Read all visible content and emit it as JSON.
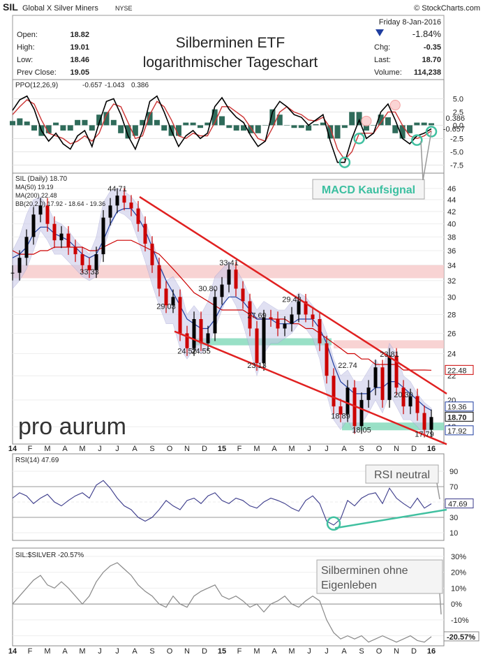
{
  "header": {
    "symbol": "SIL",
    "name": "Global X Silver Miners",
    "exchange": "NYSE",
    "source": "© StockCharts.com",
    "date": "Friday  8-Jan-2016",
    "change_pct": "-1.84%",
    "open_label": "Open:",
    "open": "18.82",
    "high_label": "High:",
    "high": "19.01",
    "low_label": "Low:",
    "low": "18.46",
    "prev_label": "Prev Close:",
    "prev": "19.05",
    "chg_label": "Chg:",
    "chg": "-0.35",
    "last_label": "Last:",
    "last": "18.70",
    "vol_label": "Volume:",
    "volume": "114,238",
    "title_line1": "Silberminen ETF",
    "title_line2": "logarithmischer Tageschart"
  },
  "colors": {
    "price_up": "#000000",
    "price_down": "#cc0000",
    "ma50": "#1f3ea0",
    "ma200": "#cc0000",
    "bollinger_fill": "#c8c8e8",
    "resistance_band": "#f6c8c8",
    "support_band": "#7fd8b8",
    "trendline": "#e02020",
    "ppo_line": "#000000",
    "ppo_signal": "#cc3333",
    "ppo_hist": "#2f6b5a",
    "rsi_line": "#3a3a8a",
    "rsi_fill": "#3a7a6a",
    "ratio_line": "#888888",
    "annot_green": "#40c0a0"
  },
  "chart_data": [
    {
      "type": "line",
      "name": "ppo-panel",
      "legend": {
        "label": "PPO(12,26,9)",
        "ppo": "-0.657",
        "signal": "-1.043",
        "hist": "0.386"
      },
      "yticks": [
        "5.0",
        "2.5",
        "0.0",
        "-2.5",
        "-5.0",
        "-7.5"
      ],
      "ytick_values": [
        5,
        2.5,
        0,
        -2.5,
        -5,
        -7.5
      ],
      "ylim": [
        -8.5,
        6.5
      ],
      "last_ppo_label": "-0.657",
      "last_hist_label": "0.386",
      "series": [
        {
          "name": "PPO",
          "values": [
            2.8,
            4.8,
            5.5,
            3.0,
            -1.0,
            -3.0,
            -1.5,
            -3.5,
            -4.5,
            -2.0,
            -1.0,
            -4.0,
            0.5,
            4.5,
            5.0,
            2.0,
            -2.0,
            -4.5,
            -1.0,
            4.5,
            5.5,
            2.5,
            -1.0,
            -4.0,
            -2.0,
            -1.0,
            -2.5,
            -1.5,
            3.5,
            5.2,
            3.0,
            1.5,
            0.5,
            -2.0,
            -4.0,
            -3.0,
            2.5,
            4.5,
            3.5,
            2.0,
            1.5,
            0.0,
            1.0,
            2.0,
            -3.0,
            -7.0,
            -7.0,
            -2.5,
            1.0,
            -2.5,
            -1.5,
            2.5,
            4.0,
            1.0,
            -2.5,
            -3.5,
            -2.0,
            -1.5,
            -0.657
          ]
        },
        {
          "name": "Signal",
          "values": [
            2.0,
            3.5,
            4.8,
            4.0,
            1.0,
            -1.5,
            -2.0,
            -2.5,
            -3.5,
            -3.0,
            -2.0,
            -3.0,
            -1.5,
            2.0,
            4.0,
            3.5,
            0.5,
            -2.5,
            -2.0,
            2.0,
            4.5,
            3.5,
            1.0,
            -2.0,
            -2.5,
            -1.5,
            -2.0,
            -2.0,
            0.5,
            3.5,
            3.5,
            2.5,
            1.5,
            -0.5,
            -2.5,
            -3.0,
            -0.5,
            2.5,
            3.5,
            2.5,
            2.0,
            1.0,
            0.8,
            1.5,
            -0.5,
            -4.5,
            -6.5,
            -5.0,
            -1.5,
            -1.5,
            -1.5,
            0.5,
            2.5,
            2.5,
            0.0,
            -2.0,
            -2.5,
            -2.0,
            -1.043
          ]
        }
      ]
    },
    {
      "type": "line",
      "name": "price-panel",
      "scale": "log",
      "legend": {
        "label": "SIL (Daily) 18.70",
        "ma50": "MA(50) 19.19",
        "ma200": "MA(200) 22.48",
        "bb": "BB(20,2.0) 17.92 - 18.64 - 19.36"
      },
      "yticks": [
        "46",
        "44",
        "42",
        "40",
        "38",
        "36",
        "34",
        "32",
        "30",
        "28",
        "26",
        "24",
        "22",
        "20",
        "18"
      ],
      "ytick_values": [
        46,
        44,
        42,
        40,
        38,
        36,
        34,
        32,
        30,
        28,
        26,
        24,
        22,
        20,
        18
      ],
      "ylim": [
        17.0,
        47.0
      ],
      "x_labels": [
        "14",
        "F",
        "M",
        "A",
        "M",
        "J",
        "J",
        "A",
        "S",
        "O",
        "N",
        "D",
        "15",
        "F",
        "M",
        "A",
        "M",
        "J",
        "J",
        "A",
        "S",
        "O",
        "N",
        "D",
        "16"
      ],
      "close": [
        33.0,
        35.0,
        38.0,
        41.5,
        43.0,
        40.0,
        37.5,
        38.5,
        36.5,
        35.5,
        34.0,
        33.33,
        35.5,
        41.0,
        43.0,
        44.71,
        43.5,
        42.5,
        40.0,
        37.0,
        34.0,
        31.0,
        29.03,
        30.0,
        26.0,
        24.52,
        27.5,
        25.0,
        26.0,
        30.0,
        31.5,
        33.41,
        31.0,
        29.5,
        26.5,
        23.13,
        27.69,
        27.5,
        26.5,
        27.0,
        28.0,
        29.48,
        28.0,
        27.5,
        25.0,
        22.0,
        19.5,
        18.89,
        21.0,
        18.05,
        20.0,
        21.0,
        22.74,
        20.0,
        23.81,
        21.0,
        19.5,
        20.3,
        19.0,
        17.79,
        18.7
      ],
      "ma50": [
        35.0,
        35.5,
        36.5,
        38.5,
        39.5,
        39.5,
        38.5,
        38.0,
        37.5,
        36.5,
        35.5,
        35.0,
        35.5,
        37.5,
        40.0,
        42.0,
        42.5,
        42.5,
        41.0,
        39.0,
        36.5,
        34.0,
        32.0,
        30.5,
        29.0,
        27.5,
        27.0,
        26.5,
        26.5,
        27.5,
        29.0,
        30.0,
        30.0,
        29.5,
        28.5,
        27.5,
        27.5,
        27.5,
        27.0,
        27.0,
        27.0,
        27.5,
        27.5,
        27.5,
        26.5,
        25.0,
        23.0,
        21.5,
        21.0,
        20.5,
        20.5,
        20.5,
        21.0,
        21.0,
        21.5,
        21.5,
        21.0,
        20.5,
        20.0,
        19.5,
        19.19
      ],
      "ma200": [
        36.0,
        35.5,
        35.5,
        35.5,
        36.0,
        36.0,
        36.5,
        36.5,
        36.5,
        36.5,
        36.5,
        36.0,
        36.0,
        36.5,
        37.0,
        37.5,
        37.5,
        37.5,
        37.0,
        36.5,
        36.0,
        35.5,
        34.5,
        33.5,
        32.5,
        31.5,
        30.5,
        30.0,
        29.5,
        29.0,
        28.5,
        28.5,
        28.5,
        28.5,
        28.0,
        27.5,
        27.5,
        27.5,
        27.5,
        27.5,
        27.0,
        27.0,
        26.5,
        26.5,
        26.0,
        25.5,
        25.0,
        24.5,
        24.0,
        24.0,
        23.5,
        23.5,
        23.0,
        23.0,
        23.0,
        23.0,
        22.5,
        22.5,
        22.5,
        22.5,
        22.48
      ],
      "bb_upper": [
        36.0,
        38.0,
        41.5,
        44.0,
        44.5,
        43.0,
        40.5,
        40.0,
        39.0,
        37.5,
        36.5,
        35.5,
        38.0,
        43.5,
        45.5,
        46.0,
        45.5,
        44.5,
        43.0,
        40.5,
        37.5,
        34.5,
        32.0,
        32.5,
        31.0,
        28.0,
        29.0,
        28.0,
        29.5,
        32.5,
        33.5,
        34.5,
        33.5,
        32.0,
        30.0,
        28.5,
        29.5,
        29.0,
        28.5,
        28.5,
        29.5,
        30.5,
        30.0,
        29.0,
        28.0,
        26.0,
        23.5,
        22.0,
        22.5,
        21.5,
        21.5,
        22.5,
        23.5,
        22.5,
        25.0,
        24.0,
        22.0,
        21.5,
        20.5,
        19.8,
        19.36
      ],
      "bb_lower": [
        31.0,
        32.0,
        33.5,
        36.0,
        39.0,
        37.5,
        35.5,
        35.5,
        34.5,
        33.5,
        32.5,
        32.0,
        32.5,
        36.0,
        39.5,
        42.0,
        41.5,
        40.5,
        37.5,
        34.5,
        31.5,
        29.0,
        27.0,
        27.0,
        24.5,
        23.5,
        24.5,
        24.0,
        24.5,
        26.5,
        28.5,
        30.5,
        29.0,
        27.0,
        24.5,
        22.0,
        24.0,
        25.0,
        25.0,
        25.5,
        26.0,
        27.0,
        26.5,
        25.5,
        23.5,
        20.5,
        18.5,
        17.8,
        18.5,
        17.5,
        18.2,
        19.0,
        20.0,
        19.0,
        20.5,
        19.5,
        18.5,
        18.5,
        18.0,
        17.4,
        17.92
      ],
      "annotations": [
        "44.71",
        "33.33",
        "33.41",
        "30.80",
        "29.03",
        "27.69",
        "29.48",
        "24.52",
        "24.55",
        "23.13",
        "22.74",
        "23.81",
        "18.89",
        "18.05",
        "20.30",
        "17.79"
      ],
      "right_labels": {
        "ma200": "22.48",
        "bb_upper": "19.36",
        "last": "18.70",
        "bb_lower": "17.92"
      },
      "resistance_band": [
        32.3,
        34.0
      ],
      "support_bands": [
        [
          24.8,
          25.5
        ],
        [
          17.75,
          18.3
        ]
      ],
      "ma200_band": [
        24.5,
        25.3
      ]
    },
    {
      "type": "line",
      "name": "rsi-panel",
      "legend": {
        "label": "RSI(14) 47.69"
      },
      "yticks": [
        "90",
        "70",
        "50",
        "30",
        "10"
      ],
      "ytick_values": [
        90,
        70,
        50,
        30,
        10
      ],
      "ylim": [
        0,
        100
      ],
      "last_label": "47.69",
      "values": [
        55,
        62,
        58,
        48,
        55,
        60,
        50,
        45,
        52,
        58,
        62,
        55,
        72,
        78,
        68,
        55,
        45,
        40,
        30,
        25,
        30,
        40,
        52,
        45,
        40,
        52,
        55,
        48,
        58,
        62,
        52,
        48,
        55,
        52,
        45,
        42,
        50,
        55,
        52,
        48,
        42,
        38,
        52,
        58,
        48,
        25,
        20,
        28,
        52,
        45,
        55,
        60,
        62,
        48,
        68,
        55,
        48,
        42,
        55,
        42,
        47.69
      ],
      "x_labels": [
        "14",
        "F",
        "M",
        "A",
        "M",
        "J",
        "J",
        "A",
        "S",
        "O",
        "N",
        "D",
        "15",
        "F",
        "M",
        "A",
        "M",
        "J",
        "J",
        "A",
        "S",
        "O",
        "N",
        "D",
        "16"
      ]
    },
    {
      "type": "line",
      "name": "ratio-panel",
      "legend": {
        "label": "SIL:$SILVER -20.57%"
      },
      "yticks": [
        "30%",
        "20%",
        "10%",
        "0%",
        "-10%",
        "-20%"
      ],
      "ytick_values": [
        30,
        20,
        10,
        0,
        -10,
        -20
      ],
      "ylim": [
        -25,
        33
      ],
      "last_label": "-20.57%",
      "values": [
        0,
        5,
        10,
        15,
        18,
        12,
        10,
        14,
        10,
        5,
        0,
        5,
        14,
        20,
        24,
        26,
        22,
        18,
        12,
        8,
        5,
        0,
        -2,
        5,
        0,
        -2,
        5,
        8,
        10,
        12,
        5,
        3,
        5,
        2,
        -2,
        0,
        -5,
        0,
        2,
        5,
        0,
        -2,
        2,
        5,
        2,
        -10,
        -18,
        -22,
        -20,
        -22,
        -20,
        -24,
        -22,
        -20,
        -22,
        -24,
        -22,
        -20,
        -23,
        -24,
        -20.57
      ],
      "x_labels": [
        "14",
        "F",
        "M",
        "A",
        "M",
        "J",
        "J",
        "A",
        "S",
        "O",
        "N",
        "D",
        "15",
        "F",
        "M",
        "A",
        "M",
        "J",
        "J",
        "A",
        "S",
        "O",
        "N",
        "D",
        "16"
      ]
    }
  ],
  "callouts": {
    "macd": "MACD Kaufsignal",
    "rsi": "RSI neutral",
    "ratio_line1": "Silberminen ohne",
    "ratio_line2": "Eigenleben",
    "logo": "pro aurum"
  }
}
